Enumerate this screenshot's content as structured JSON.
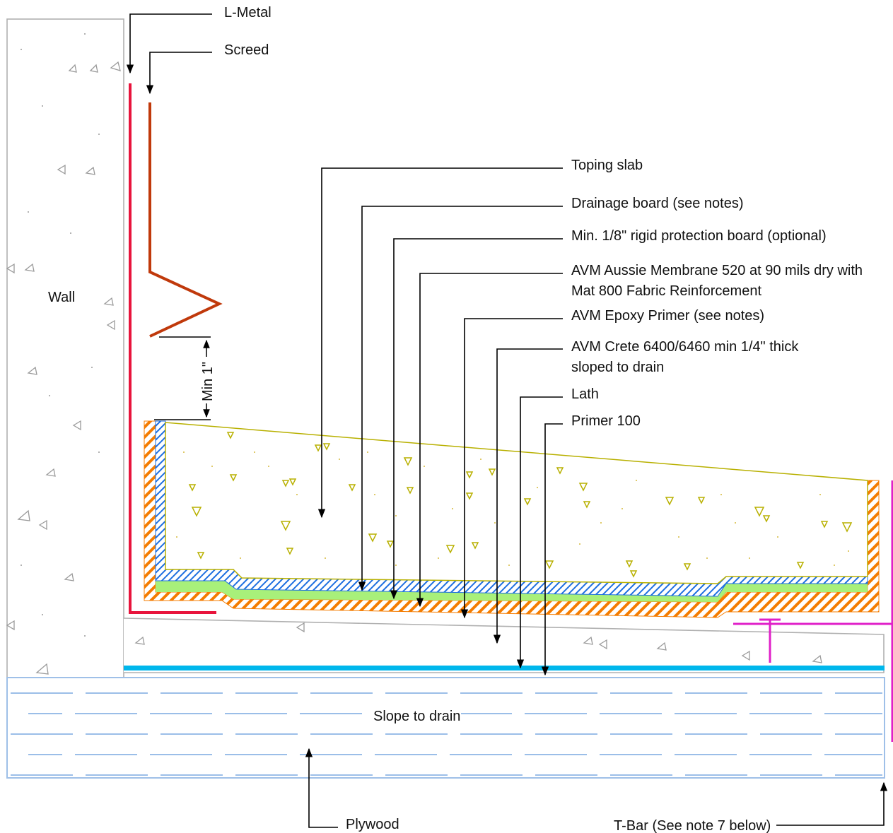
{
  "labels": {
    "l_metal": "L-Metal",
    "screed": "Screed",
    "toping_slab": "Toping slab",
    "drainage_board": "Drainage board (see notes)",
    "protection_board": "Min. 1/8\" rigid protection board (optional)",
    "membrane_line1": "AVM Aussie Membrane 520 at 90 mils dry with",
    "membrane_line2": "Mat 800 Fabric Reinforcement",
    "epoxy_primer": "AVM Epoxy Primer (see notes)",
    "crete_line1": "AVM Crete 6400/6460 min 1/4\" thick",
    "crete_line2": "sloped to drain",
    "lath": "Lath",
    "primer_100": "Primer 100",
    "wall": "Wall",
    "min_1": "Min 1\"",
    "slope_to_drain": "Slope to drain",
    "plywood": "Plywood",
    "t_bar": "T-Bar (See note 7 below)"
  },
  "colors": {
    "l_metal": "#e8143c",
    "screed": "#c0390b",
    "orange_hatch": "#f47c00",
    "blue_hatch": "#1e6fe0",
    "green_layer": "#a8f07a",
    "lath": "#00b7ec",
    "t_bar": "#e020c8",
    "concrete_outline": "#b0b0b0",
    "slab_outline": "#b8b000",
    "plywood": "#9fc0e8"
  },
  "icons": [
    "arrow-down-icon",
    "arrow-up-icon",
    "dimension-arrow-icon"
  ]
}
